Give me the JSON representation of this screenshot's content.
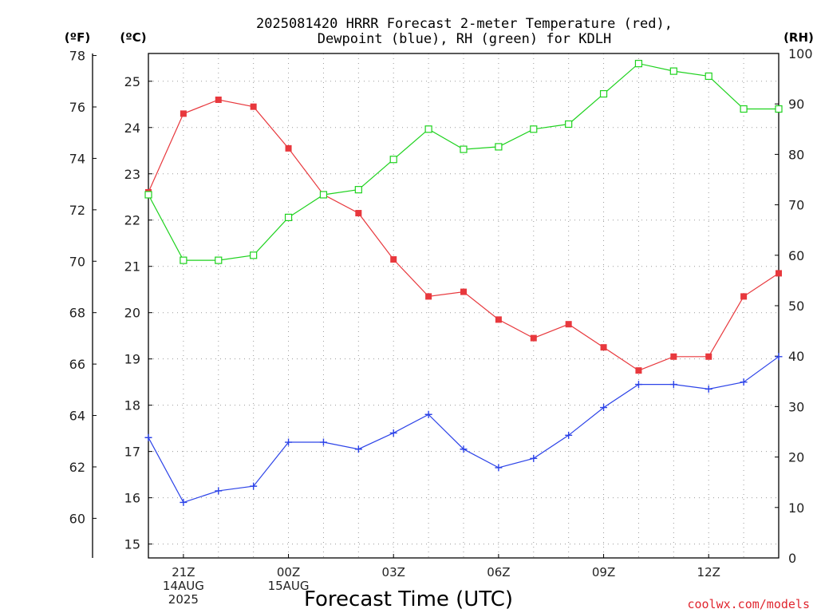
{
  "chart_data": {
    "type": "line",
    "title": [
      "2025081420 HRRR Forecast 2-meter Temperature (red),",
      "Dewpoint (blue), RH (green) for KDLH"
    ],
    "xlabel": "Forecast Time (UTC)",
    "credit": "coolwx.com/models",
    "units": {
      "fahrenheit": "(ºF)",
      "celsius": "(ºC)",
      "rh": "(RH)"
    },
    "x_hours": [
      0,
      1,
      2,
      3,
      4,
      5,
      6,
      7,
      8,
      9,
      10,
      11,
      12,
      13,
      14,
      15,
      16,
      17,
      18
    ],
    "x_ticks": [
      {
        "hour": 1,
        "lines": [
          "21Z",
          "14AUG",
          "2025"
        ]
      },
      {
        "hour": 4,
        "lines": [
          "00Z",
          "15AUG"
        ]
      },
      {
        "hour": 7,
        "lines": [
          "03Z"
        ]
      },
      {
        "hour": 10,
        "lines": [
          "06Z"
        ]
      },
      {
        "hour": 13,
        "lines": [
          "09Z"
        ]
      },
      {
        "hour": 16,
        "lines": [
          "12Z"
        ]
      }
    ],
    "axes": {
      "celsius": {
        "ylim": [
          14.7,
          25.6
        ],
        "ticks": [
          15,
          16,
          17,
          18,
          19,
          20,
          21,
          22,
          23,
          24,
          25
        ]
      },
      "fahrenheit": {
        "ylim": [
          58.46,
          78.08
        ],
        "ticks": [
          60,
          62,
          64,
          66,
          68,
          70,
          72,
          74,
          76,
          78
        ]
      },
      "rh": {
        "ylim": [
          0,
          100
        ],
        "ticks": [
          0,
          10,
          20,
          30,
          40,
          50,
          60,
          70,
          80,
          90,
          100
        ]
      }
    },
    "grid": true,
    "series": [
      {
        "name": "Temperature",
        "axis": "celsius",
        "color": "#e8383d",
        "marker": "filled-square",
        "values": [
          22.6,
          24.3,
          24.6,
          24.45,
          23.55,
          22.55,
          22.15,
          21.15,
          20.35,
          20.45,
          19.85,
          19.45,
          19.75,
          19.25,
          18.75,
          19.05,
          19.05,
          20.35,
          20.85
        ]
      },
      {
        "name": "Dewpoint",
        "axis": "celsius",
        "color": "#2c43e8",
        "marker": "plus",
        "values": [
          17.3,
          15.9,
          16.15,
          16.25,
          17.2,
          17.2,
          17.05,
          17.4,
          17.8,
          17.05,
          16.65,
          16.85,
          17.35,
          17.95,
          18.45,
          18.45,
          18.35,
          18.5,
          19.05
        ]
      },
      {
        "name": "RH",
        "axis": "rh",
        "color": "#1ed21e",
        "marker": "open-square",
        "values": [
          72,
          59,
          59,
          60,
          67.5,
          72,
          73,
          79,
          85,
          81,
          81.5,
          85,
          86,
          92,
          98,
          96.5,
          95.5,
          89,
          89
        ]
      }
    ]
  }
}
